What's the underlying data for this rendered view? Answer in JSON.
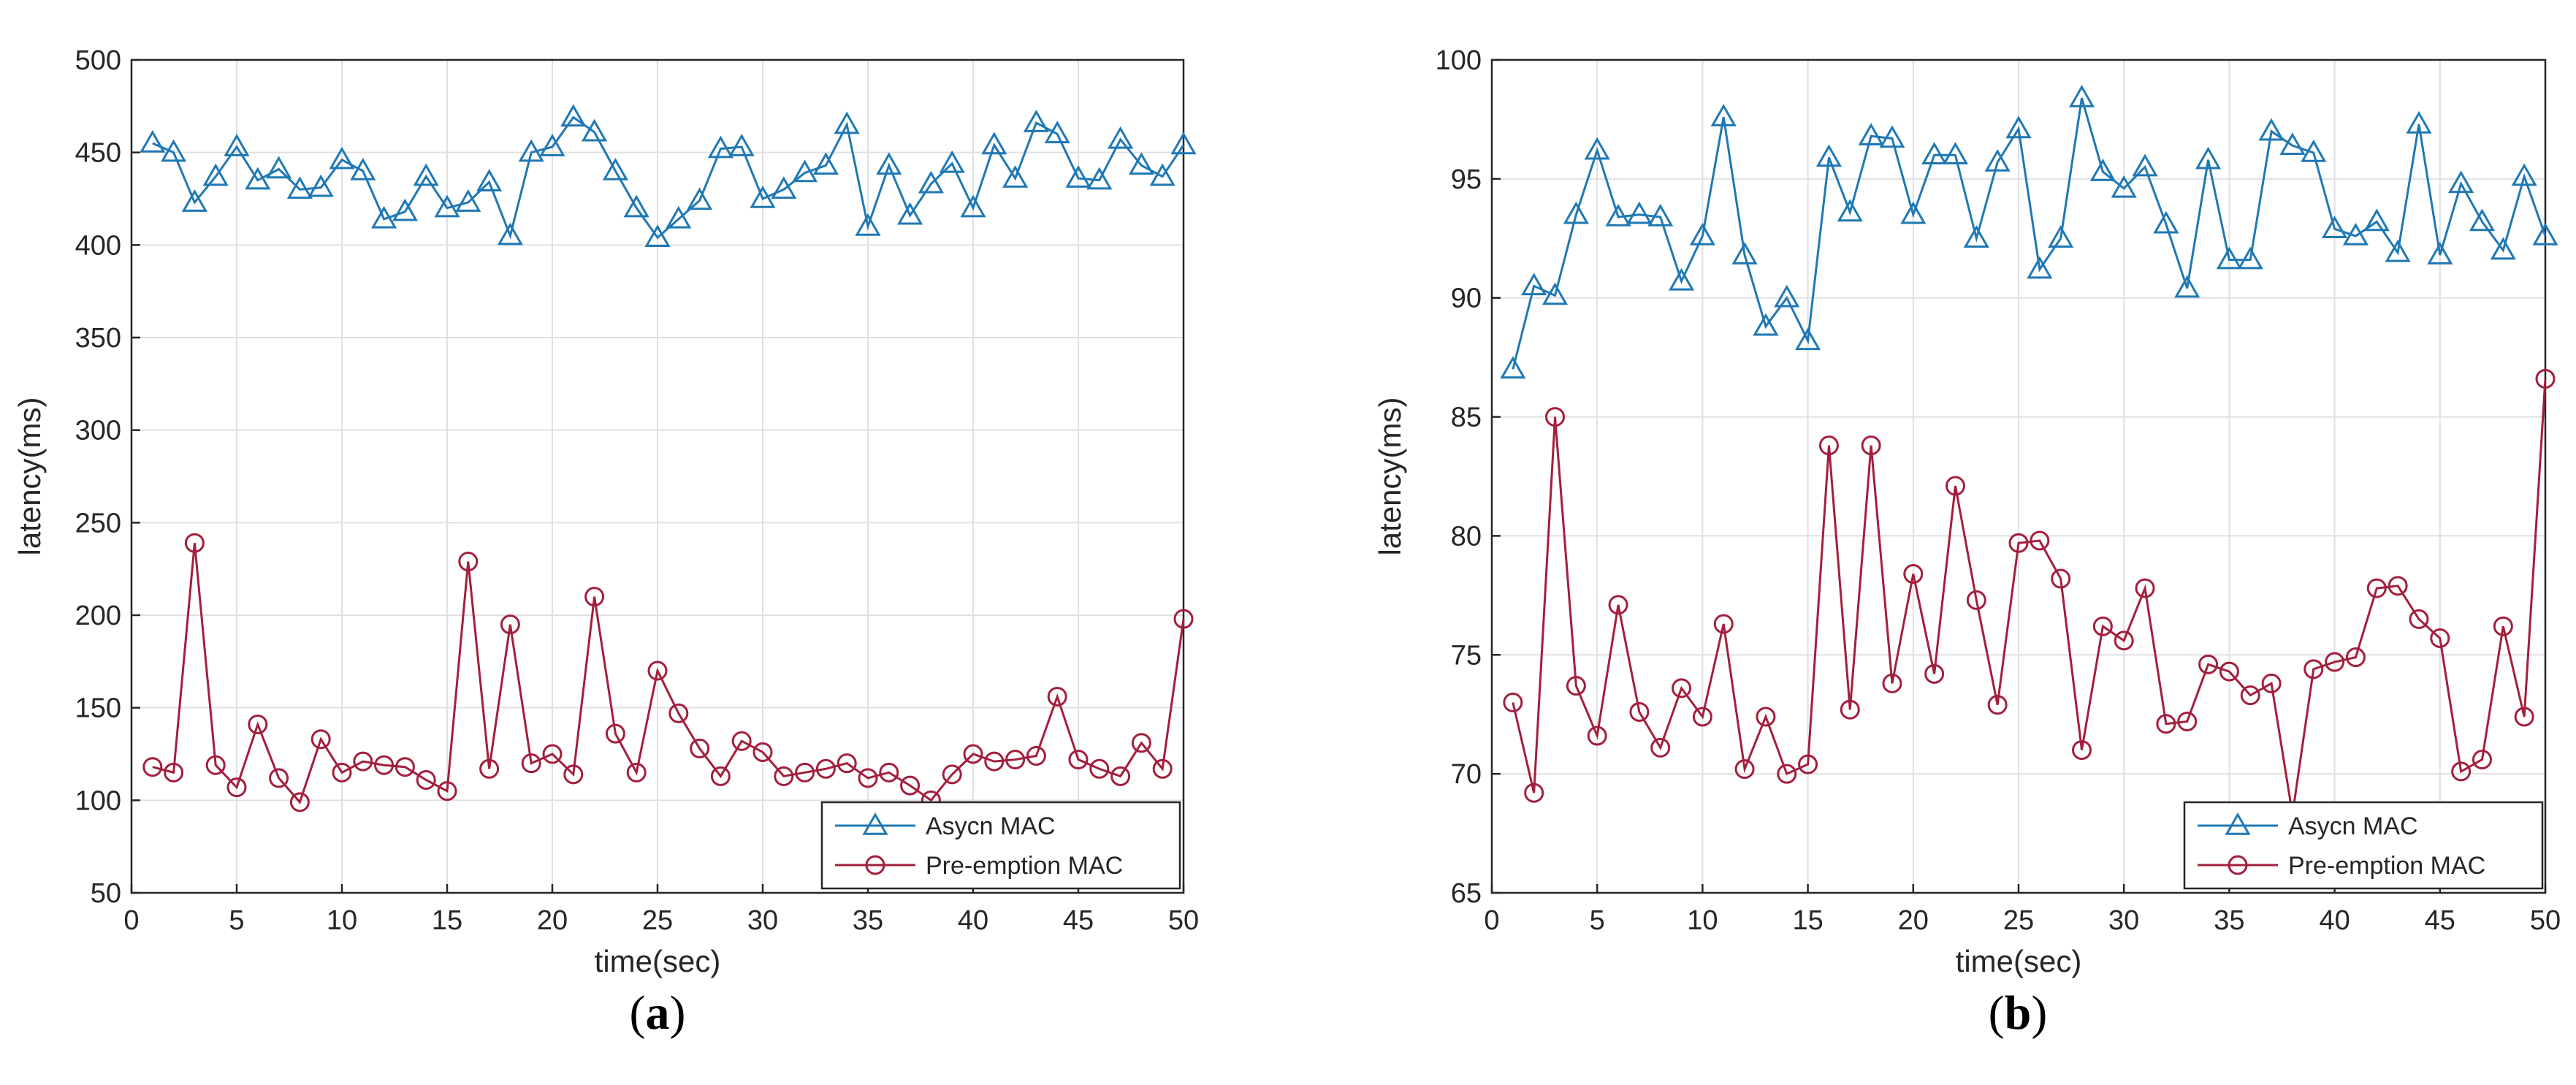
{
  "figure": {
    "panels": [
      "a",
      "b"
    ]
  },
  "chart_data": [
    {
      "type": "line",
      "panel": "a",
      "caption_open": "(",
      "caption_letter": "a",
      "caption_close": ")",
      "title": "",
      "xlabel": "time(sec)",
      "ylabel": "latency(ms)",
      "xlim": [
        0,
        50
      ],
      "ylim": [
        50,
        500
      ],
      "xticks": [
        0,
        5,
        10,
        15,
        20,
        25,
        30,
        35,
        40,
        45,
        50
      ],
      "yticks": [
        50,
        100,
        150,
        200,
        250,
        300,
        350,
        400,
        450,
        500
      ],
      "grid": true,
      "legend_position": "bottom-right",
      "x": [
        1,
        2,
        3,
        4,
        5,
        6,
        7,
        8,
        9,
        10,
        11,
        12,
        13,
        14,
        15,
        16,
        17,
        18,
        19,
        20,
        21,
        22,
        23,
        24,
        25,
        26,
        27,
        28,
        29,
        30,
        31,
        32,
        33,
        34,
        35,
        36,
        37,
        38,
        39,
        40,
        41,
        42,
        43,
        44,
        45,
        46,
        47,
        48,
        49,
        50
      ],
      "series": [
        {
          "name": "Asycn MAC",
          "color": "#1f78b4",
          "marker": "triangle",
          "values": [
            455,
            450,
            423,
            437,
            453,
            435,
            441,
            430,
            431,
            446,
            440,
            414,
            418,
            437,
            420,
            423,
            434,
            405,
            450,
            453,
            469,
            461,
            440,
            420,
            404,
            414,
            424,
            452,
            453,
            425,
            430,
            439,
            443,
            465,
            410,
            443,
            416,
            433,
            444,
            420,
            454,
            436,
            466,
            460,
            436,
            435,
            457,
            443,
            437,
            454
          ]
        },
        {
          "name": "Pre-emption MAC",
          "color": "#a31f3c",
          "marker": "circle",
          "values": [
            118,
            115,
            239,
            119,
            107,
            141,
            112,
            99,
            133,
            115,
            121,
            119,
            118,
            111,
            105,
            229,
            117,
            195,
            120,
            125,
            114,
            210,
            136,
            115,
            170,
            147,
            128,
            113,
            132,
            126,
            113,
            115,
            117,
            120,
            112,
            115,
            108,
            100,
            114,
            125,
            121,
            122,
            124,
            156,
            122,
            117,
            113,
            131,
            117,
            198
          ]
        }
      ]
    },
    {
      "type": "line",
      "panel": "b",
      "caption_open": "(",
      "caption_letter": "b",
      "caption_close": ")",
      "title": "",
      "xlabel": "time(sec)",
      "ylabel": "latency(ms)",
      "xlim": [
        0,
        50
      ],
      "ylim": [
        65,
        100
      ],
      "xticks": [
        0,
        5,
        10,
        15,
        20,
        25,
        30,
        35,
        40,
        45,
        50
      ],
      "yticks": [
        65,
        70,
        75,
        80,
        85,
        90,
        95,
        100
      ],
      "grid": true,
      "legend_position": "bottom-right",
      "x": [
        1,
        2,
        3,
        4,
        5,
        6,
        7,
        8,
        9,
        10,
        11,
        12,
        13,
        14,
        15,
        16,
        17,
        18,
        19,
        20,
        21,
        22,
        23,
        24,
        25,
        26,
        27,
        28,
        29,
        30,
        31,
        32,
        33,
        34,
        35,
        36,
        37,
        38,
        39,
        40,
        41,
        42,
        43,
        44,
        45,
        46,
        47,
        48,
        49,
        50
      ],
      "series": [
        {
          "name": "Asycn MAC",
          "color": "#1f78b4",
          "marker": "triangle",
          "values": [
            87.0,
            90.5,
            90.1,
            93.5,
            96.2,
            93.4,
            93.5,
            93.4,
            90.7,
            92.6,
            97.6,
            91.8,
            88.8,
            90.0,
            88.2,
            95.9,
            93.6,
            96.8,
            96.7,
            93.5,
            96.0,
            96.0,
            92.5,
            95.7,
            97.1,
            91.2,
            92.5,
            98.4,
            95.3,
            94.6,
            95.5,
            93.1,
            90.4,
            95.8,
            91.6,
            91.6,
            97.0,
            96.4,
            96.1,
            92.9,
            92.6,
            93.2,
            91.9,
            97.3,
            91.8,
            94.8,
            93.2,
            92.0,
            95.1,
            92.6
          ]
        },
        {
          "name": "Pre-emption MAC",
          "color": "#a31f3c",
          "marker": "circle",
          "values": [
            73.0,
            69.2,
            85.0,
            73.7,
            71.6,
            77.1,
            72.6,
            71.1,
            73.6,
            72.4,
            76.3,
            70.2,
            72.4,
            70.0,
            70.4,
            83.8,
            72.7,
            83.8,
            73.8,
            78.4,
            74.2,
            82.1,
            77.3,
            72.9,
            79.7,
            79.8,
            78.2,
            71.0,
            76.2,
            75.6,
            77.8,
            72.1,
            72.2,
            74.6,
            74.3,
            73.3,
            73.8,
            68.3,
            74.4,
            74.7,
            74.9,
            77.8,
            77.9,
            76.5,
            75.7,
            70.1,
            70.6,
            76.2,
            72.4,
            86.6
          ]
        }
      ]
    }
  ]
}
